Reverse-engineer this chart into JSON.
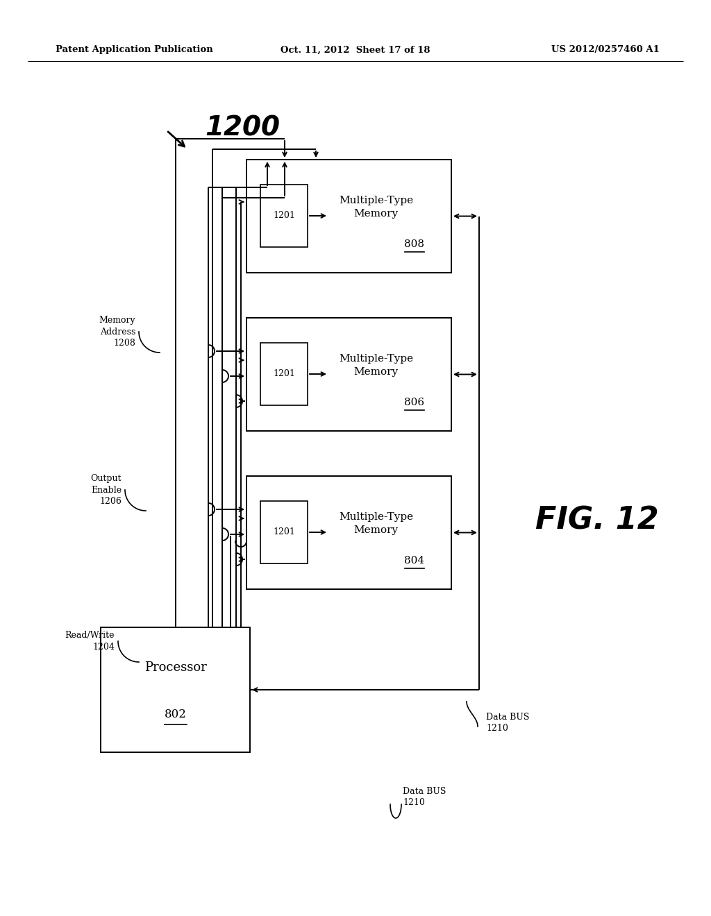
{
  "header_left": "Patent Application Publication",
  "header_mid": "Oct. 11, 2012  Sheet 17 of 18",
  "header_right": "US 2012/0257460 A1",
  "bg_color": "#ffffff",
  "line_color": "#000000",
  "fig_label": "1200",
  "fig_number": "FIG. 12",
  "processor_label": "Processor",
  "processor_num": "802",
  "mem_labels": [
    "Multiple-Type\nMemory",
    "Multiple-Type\nMemory",
    "Multiple-Type\nMemory"
  ],
  "mem_nums": [
    "808",
    "806",
    "804"
  ],
  "inner_num": "1201",
  "bus_labels": [
    {
      "text": "Memory\nAddress\n1208",
      "side": "left"
    },
    {
      "text": "Output\nEnable\n1206",
      "side": "left"
    },
    {
      "text": "Read/Write\n1204",
      "side": "left"
    },
    {
      "text": "Data BUS\n1210",
      "side": "bottom"
    }
  ]
}
